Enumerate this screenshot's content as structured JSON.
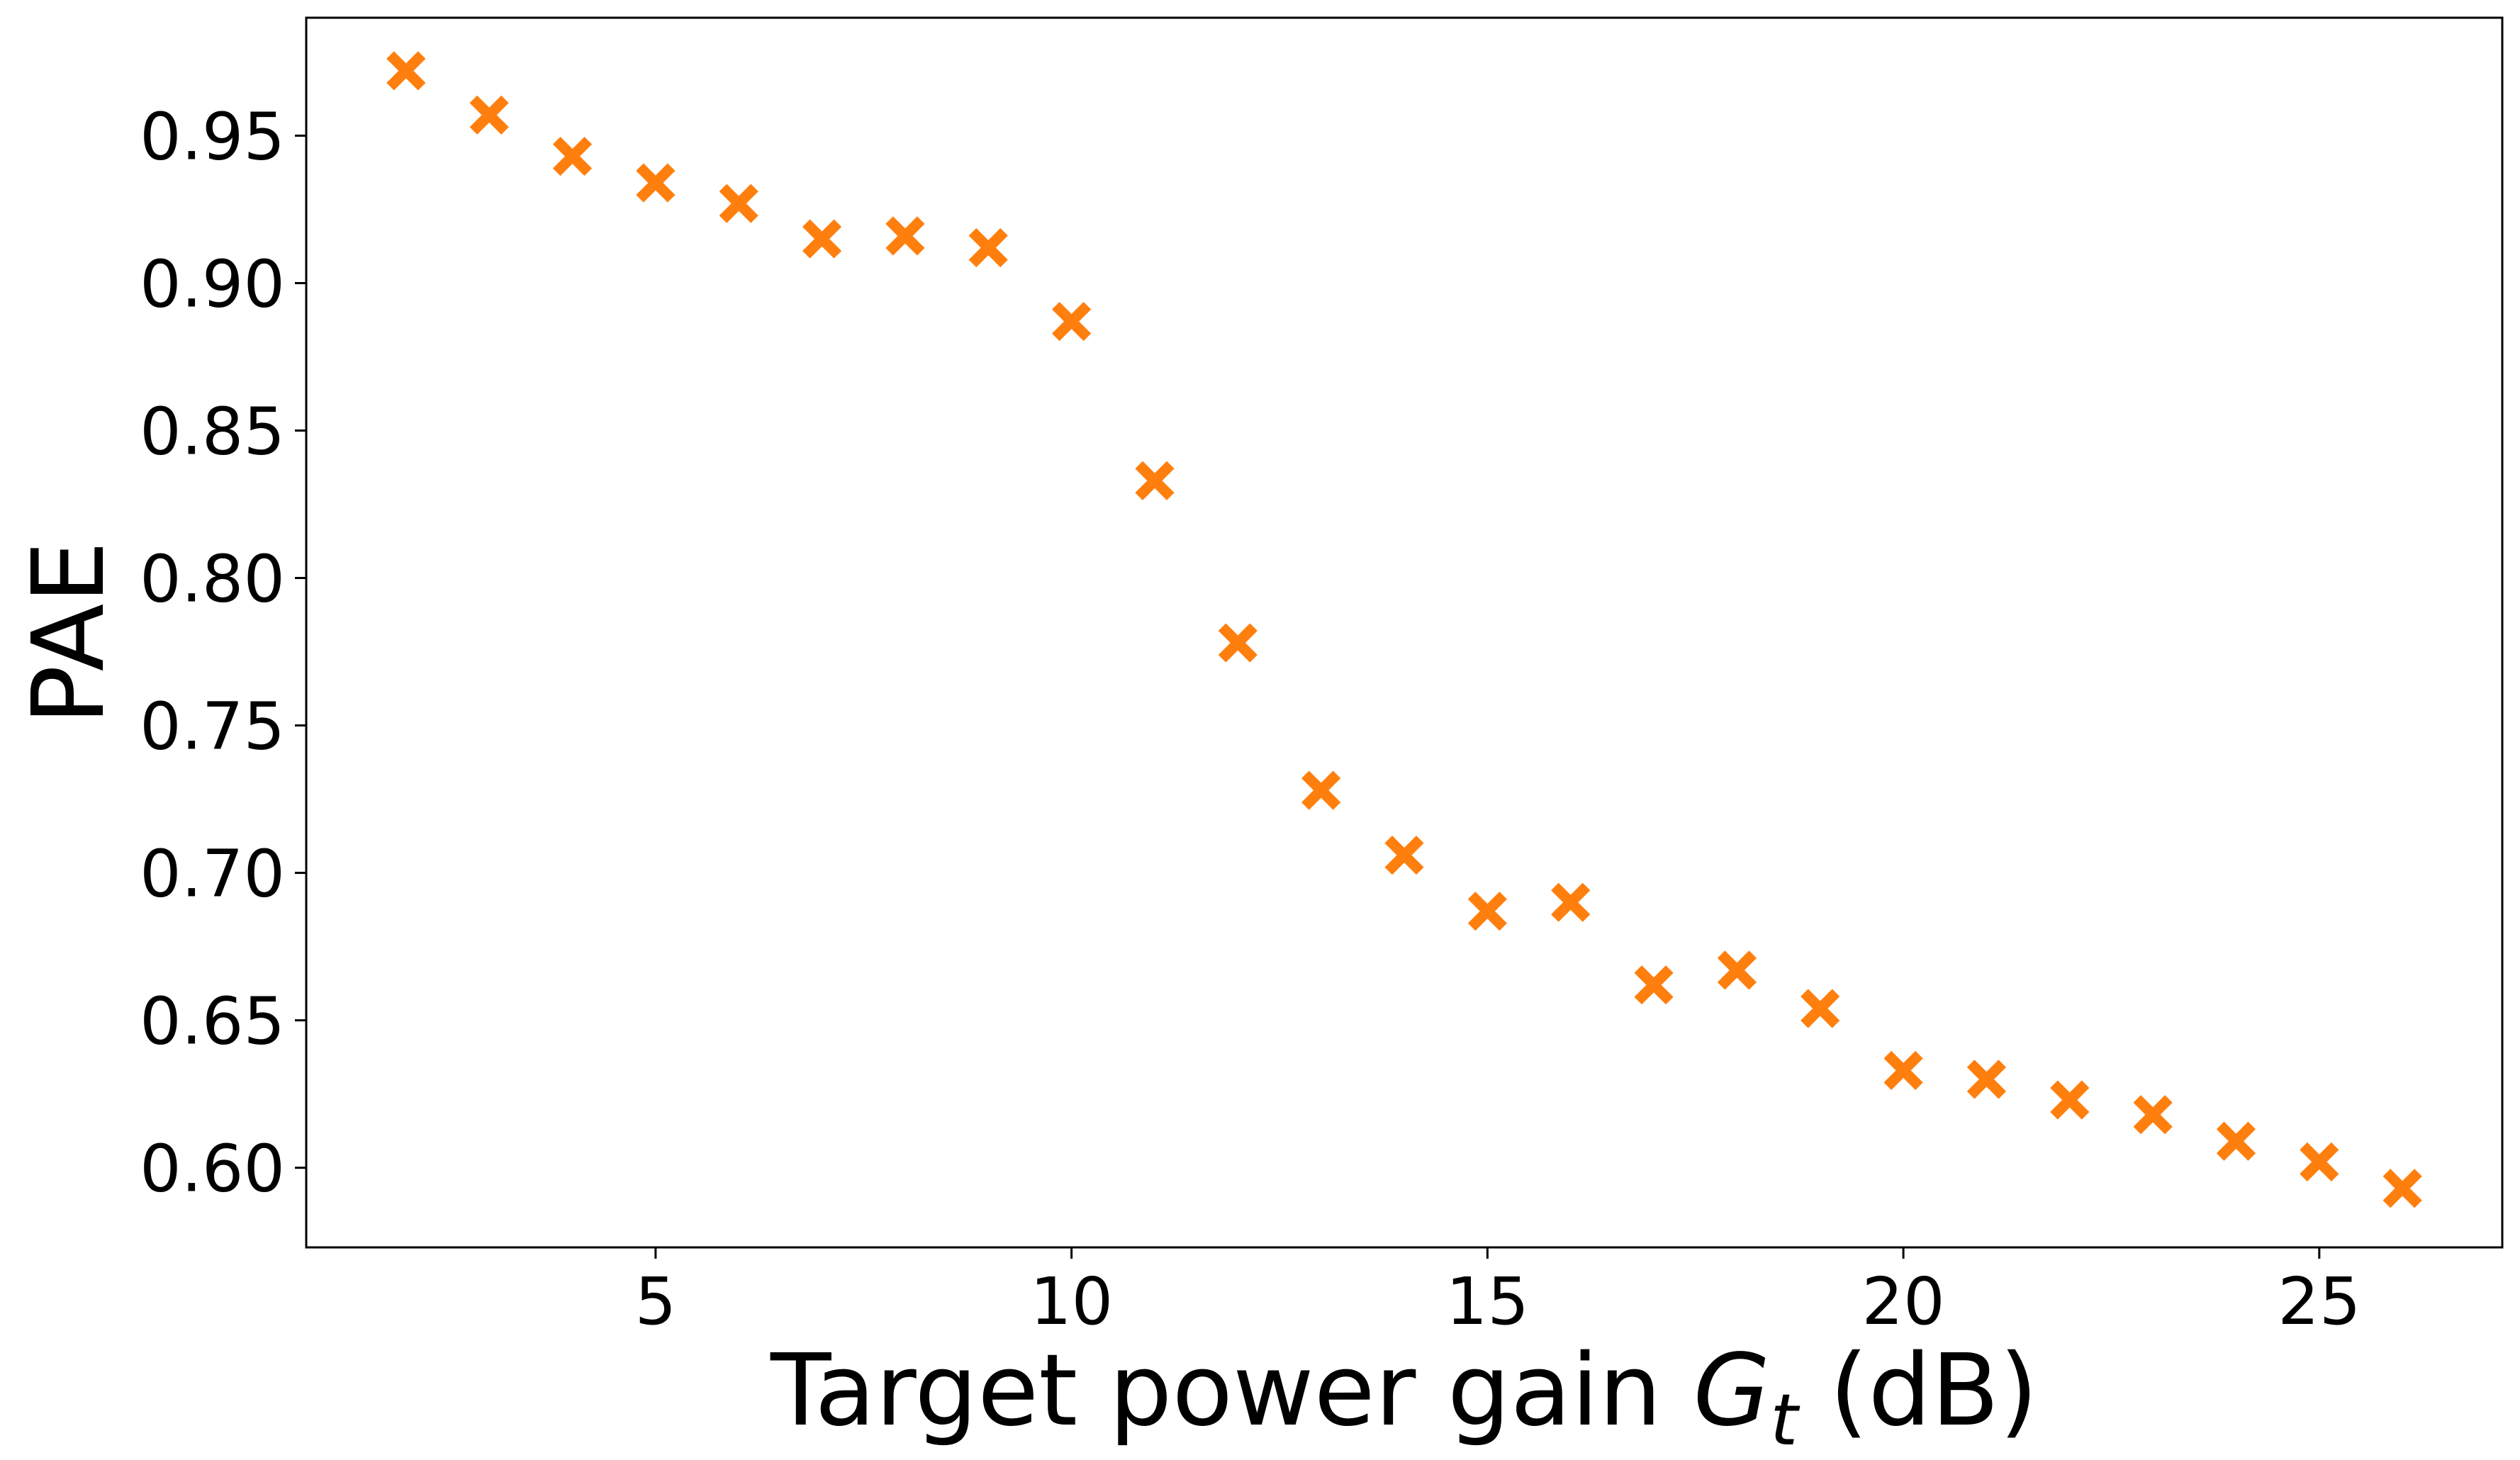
{
  "chart_data": {
    "type": "scatter",
    "title": "",
    "xlabel": "Target power gain",
    "xlabel_symbol": "G",
    "xlabel_subscript": "t",
    "xlabel_unit": "(dB)",
    "ylabel": "PAE",
    "xlim": [
      0.8,
      27.2
    ],
    "ylim": [
      0.573,
      0.99
    ],
    "xticks": [
      5,
      10,
      15,
      20,
      25
    ],
    "xtick_labels": [
      "5",
      "10",
      "15",
      "20",
      "25"
    ],
    "yticks": [
      0.6,
      0.65,
      0.7,
      0.75,
      0.8,
      0.85,
      0.9,
      0.95
    ],
    "ytick_labels": [
      "0.60",
      "0.65",
      "0.70",
      "0.75",
      "0.80",
      "0.85",
      "0.90",
      "0.95"
    ],
    "grid": false,
    "marker": "X",
    "color": "#ff7f0e",
    "series": [
      {
        "x": [
          2,
          3,
          4,
          5,
          6,
          7,
          8,
          9,
          10,
          11,
          12,
          13,
          14,
          15,
          16,
          17,
          18,
          19,
          20,
          21,
          22,
          23,
          24,
          25,
          26
        ],
        "y": [
          0.972,
          0.957,
          0.943,
          0.934,
          0.927,
          0.915,
          0.916,
          0.912,
          0.887,
          0.833,
          0.778,
          0.728,
          0.706,
          0.687,
          0.69,
          0.662,
          0.667,
          0.654,
          0.633,
          0.63,
          0.623,
          0.618,
          0.609,
          0.602,
          0.593
        ]
      }
    ]
  }
}
